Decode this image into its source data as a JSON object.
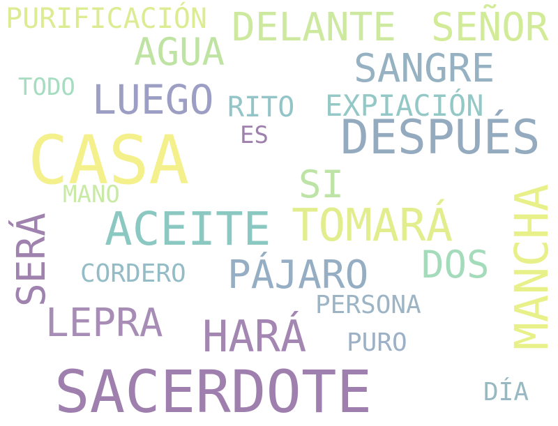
{
  "words": {
    "sacerdote": {
      "text": "SACERDOTE",
      "color": "#9e7fae"
    },
    "casa": {
      "text": "CASA",
      "color": "#f4f08c"
    },
    "despues": {
      "text": "DESPUÉS",
      "color": "#93aabf"
    },
    "mancha": {
      "text": "MANCHA",
      "color": "#e8f08a"
    },
    "tomara": {
      "text": "TOMARÁ",
      "color": "#e2ee8e"
    },
    "aceite": {
      "text": "ACEITE",
      "color": "#8cc8c2"
    },
    "hara": {
      "text": "HARÁ",
      "color": "#a486b2"
    },
    "pajaro": {
      "text": "PÁJARO",
      "color": "#96aec4"
    },
    "luego": {
      "text": "LUEGO",
      "color": "#9c9ec4"
    },
    "sangre": {
      "text": "SANGRE",
      "color": "#96b2c2"
    },
    "delante": {
      "text": "DELANTE",
      "color": "#cde9a0"
    },
    "senor": {
      "text": "SEÑOR",
      "color": "#d2eb98"
    },
    "agua": {
      "text": "AGUA",
      "color": "#bfe3a2"
    },
    "sera": {
      "text": "SERÁ",
      "color": "#9f82ae"
    },
    "lepra": {
      "text": "LEPRA",
      "color": "#a78cb6"
    },
    "dos": {
      "text": "DOS",
      "color": "#a4dcbb"
    },
    "si": {
      "text": "SI",
      "color": "#bde4a6"
    },
    "expiacion": {
      "text": "EXPIACIÓN",
      "color": "#94c8c6"
    },
    "purificacion": {
      "text": "PURIFICACIÓN",
      "color": "#dcec92"
    },
    "rito": {
      "text": "RITO",
      "color": "#92c4c8"
    },
    "persona": {
      "text": "PERSONA",
      "color": "#9cb4c4"
    },
    "cordero": {
      "text": "CORDERO",
      "color": "#94bcc6"
    },
    "puro": {
      "text": "PURO",
      "color": "#9cb0c6"
    },
    "dia": {
      "text": "DÍA",
      "color": "#98b8c2"
    },
    "todo": {
      "text": "TODO",
      "color": "#a6dcc0"
    },
    "mano": {
      "text": "MANO",
      "color": "#c8eaa4"
    },
    "es": {
      "text": "ES",
      "color": "#9f7fae"
    }
  }
}
